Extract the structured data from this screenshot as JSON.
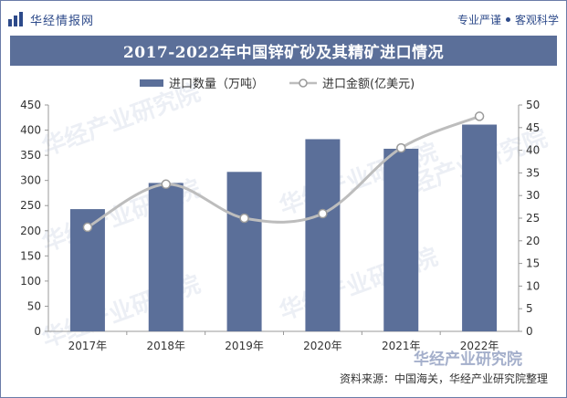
{
  "header": {
    "logo_text": "华经情报网",
    "slogan_left": "专业严谨",
    "slogan_right": "客观科学"
  },
  "title": "2017-2022年中国锌矿砂及其精矿进口情况",
  "legend": {
    "bar_label": "进口数量（万吨）",
    "line_label": "进口金额(亿美元)"
  },
  "source": "资料来源：中国海关，华经产业研究院整理",
  "watermark": "华经产业研究院",
  "colors": {
    "bar": "#5b6f99",
    "line": "#c4c4c4",
    "title_bg": "#5b6f99",
    "brand": "#2d4a8a"
  },
  "chart_data": {
    "type": "bar",
    "categories": [
      "2017年",
      "2018年",
      "2019年",
      "2020年",
      "2021年",
      "2022年"
    ],
    "series": [
      {
        "name": "进口数量（万吨）",
        "type": "bar",
        "axis": "left",
        "values": [
          243,
          295,
          317,
          382,
          363,
          411
        ]
      },
      {
        "name": "进口金额(亿美元)",
        "type": "line",
        "axis": "right",
        "values": [
          23,
          32.5,
          25,
          26,
          40.5,
          47.5
        ]
      }
    ],
    "y_left": {
      "min": 0,
      "max": 450,
      "ticks": [
        0,
        50,
        100,
        150,
        200,
        250,
        300,
        350,
        400,
        450
      ]
    },
    "y_right": {
      "min": 0,
      "max": 50,
      "ticks": [
        0,
        5,
        10,
        15,
        20,
        25,
        30,
        35,
        40,
        45,
        50
      ]
    },
    "grid": false,
    "legend_position": "top"
  }
}
